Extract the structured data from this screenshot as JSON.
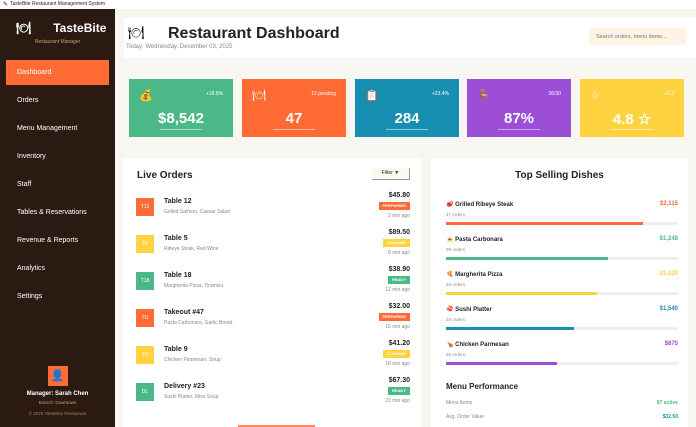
{
  "window": {
    "title": "TasteBite Restaurant Management System"
  },
  "sidebar": {
    "brand": "TasteBite",
    "subtitle": "Restaurant Manager",
    "items": [
      {
        "label": "Dashboard",
        "active": true
      },
      {
        "label": "Orders"
      },
      {
        "label": "Menu Management"
      },
      {
        "label": "Inventory"
      },
      {
        "label": "Staff"
      },
      {
        "label": "Tables & Reservations"
      },
      {
        "label": "Revenue & Reports"
      },
      {
        "label": "Analytics"
      },
      {
        "label": "Settings"
      }
    ],
    "manager": "Manager: Sarah Chen",
    "branch": "Branch: Downtown",
    "copyright": "© 2025 TasteBite Restaurant"
  },
  "header": {
    "title": "Restaurant Dashboard",
    "date": "Today: Wednesday, December 03, 2025",
    "search_placeholder": "Search orders, menu items..."
  },
  "stats": [
    {
      "icon": "money-bag-icon",
      "change": "+18.5%",
      "value": "$8,542",
      "color": "#4cb888"
    },
    {
      "icon": "utensils-icon",
      "change": "12 pending",
      "value": "47",
      "color": "#ff6b35"
    },
    {
      "icon": "document-icon",
      "change": "+23.4%",
      "value": "284",
      "color": "#168fb3"
    },
    {
      "icon": "chair-icon",
      "change": "26/30",
      "value": "87%",
      "color": "#9c4fd6"
    },
    {
      "icon": "star-icon",
      "change": "+0.3",
      "value": "4.8 ☆",
      "color": "#ffd23f"
    }
  ],
  "live_orders": {
    "title": "Live Orders",
    "filter_label": "Filter ▼",
    "orders": [
      {
        "badge": "T12",
        "name": "Table 12",
        "items": "Grilled Salmon, Caesar Salad",
        "price": "$45.80",
        "status": "PREPARING",
        "time": "2 min ago",
        "color": "#ff6b35"
      },
      {
        "badge": "T5",
        "name": "Table 5",
        "items": "Ribeye Steak, Red Wine",
        "price": "$89.50",
        "status": "COOKING",
        "time": "8 min ago",
        "color": "#ffd23f"
      },
      {
        "badge": "T18",
        "name": "Table 18",
        "items": "Margherita Pizza, Tiramisu",
        "price": "$38.90",
        "status": "READY",
        "time": "12 min ago",
        "color": "#4cb888"
      },
      {
        "badge": "TO",
        "name": "Takeout #47",
        "items": "Pasta Carbonara, Garlic Bread",
        "price": "$32.00",
        "status": "PREPARING",
        "time": "15 min ago",
        "color": "#ff6b35"
      },
      {
        "badge": "T9",
        "name": "Table 9",
        "items": "Chicken Parmesan, Soup",
        "price": "$41.20",
        "status": "COOKING",
        "time": "18 min ago",
        "color": "#ffd23f"
      },
      {
        "badge": "DL",
        "name": "Delivery #23",
        "items": "Sushi Platter, Miso Soup",
        "price": "$67.30",
        "status": "READY",
        "time": "22 min ago",
        "color": "#4cb888"
      }
    ]
  },
  "top_dishes": {
    "title": "Top Selling Dishes",
    "dishes": [
      {
        "name": "🥩 Grilled Ribeye Steak",
        "orders": "47 orders",
        "revenue": "$2,115",
        "progress": 0.85,
        "color": "#ff6b35"
      },
      {
        "name": "🍝 Pasta Carbonara",
        "orders": "39 orders",
        "revenue": "$1,248",
        "progress": 0.7,
        "color": "#4cb888"
      },
      {
        "name": "🍕 Margherita Pizza",
        "orders": "34 orders",
        "revenue": "$1,020",
        "progress": 0.65,
        "color": "#ffd23f"
      },
      {
        "name": "🍣 Sushi Platter",
        "orders": "28 orders",
        "revenue": "$1,540",
        "progress": 0.55,
        "color": "#168fb3"
      },
      {
        "name": "🍗 Chicken Parmesan",
        "orders": "25 orders",
        "revenue": "$875",
        "progress": 0.48,
        "color": "#9c4fd6"
      }
    ]
  },
  "menu_performance": {
    "title": "Menu Performance",
    "rows": [
      {
        "label": "Menu Items",
        "value": "87 active",
        "color": "#4cb888"
      },
      {
        "label": "Avg. Order Value",
        "value": "$32.50",
        "color": "#168fb3"
      }
    ]
  }
}
